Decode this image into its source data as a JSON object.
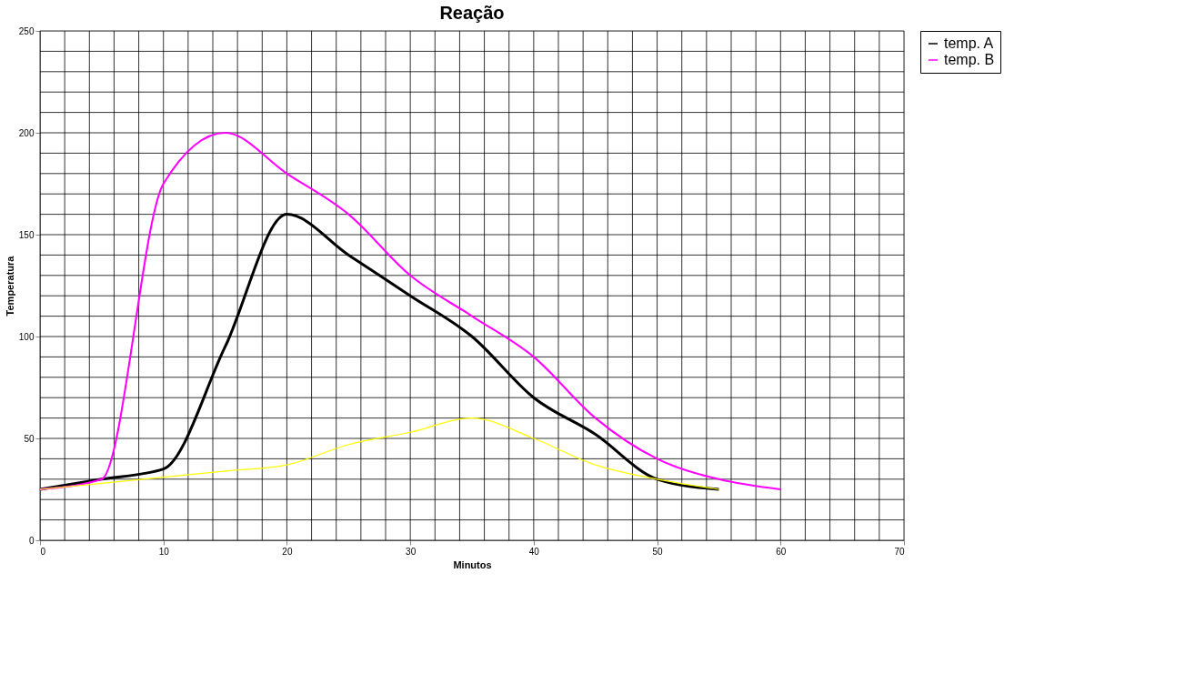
{
  "chart_data": {
    "type": "line",
    "title": "Reação",
    "xlabel": "Minutos",
    "ylabel": "Temperatura",
    "x": [
      0,
      5,
      10,
      15,
      20,
      25,
      30,
      35,
      40,
      45,
      50,
      55,
      60
    ],
    "series": [
      {
        "name": "temp. A",
        "color": "#000000",
        "values": [
          25,
          30,
          35,
          95,
          160,
          140,
          120,
          100,
          70,
          52,
          30,
          25,
          null
        ]
      },
      {
        "name": "temp. B",
        "color": "#ff00ff",
        "values": [
          25,
          30,
          175,
          200,
          180,
          160,
          130,
          110,
          90,
          60,
          40,
          30,
          25
        ]
      },
      {
        "color": "#ffff00",
        "values": [
          25,
          28,
          31,
          34,
          37,
          47,
          53,
          60,
          50,
          37,
          30,
          25,
          null
        ]
      }
    ],
    "xlim": [
      0,
      70
    ],
    "xticks": [
      0,
      10,
      20,
      30,
      40,
      50,
      60,
      70
    ],
    "ylim": [
      0,
      250
    ],
    "yticks": [
      0,
      50,
      100,
      150,
      200,
      250
    ],
    "grid": true,
    "legend": "right",
    "marker": "none",
    "line_style": "solid"
  }
}
